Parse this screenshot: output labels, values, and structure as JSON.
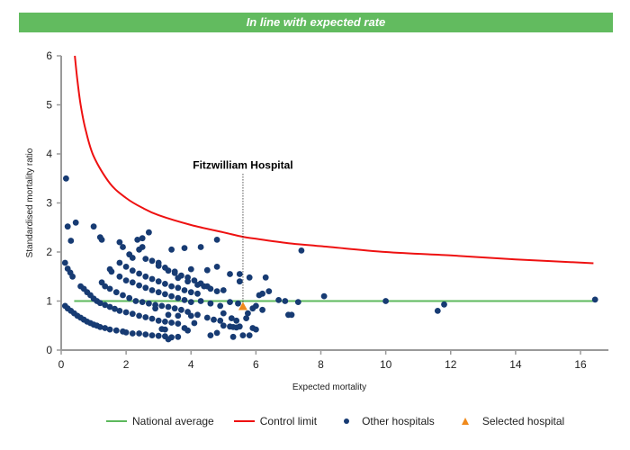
{
  "banner": {
    "text": "In line with expected rate",
    "color": "#62bb5f"
  },
  "chart_data": {
    "type": "scatter",
    "title": "In line with expected rate",
    "xlabel": "Expected mortality",
    "ylabel": "Standardised mortality ratio",
    "xlim": [
      0,
      17
    ],
    "ylim": [
      0,
      6
    ],
    "xticks": [
      0,
      2,
      4,
      6,
      8,
      10,
      12,
      14,
      16
    ],
    "yticks": [
      0,
      1,
      2,
      3,
      4,
      5,
      6
    ],
    "grid": false,
    "legend_position": "bottom",
    "colors": {
      "national_average": "#5cb85c",
      "control_limit": "#ee1111",
      "other_hospitals": "#173b73",
      "selected_hospital": "#f08a1c",
      "axis": "#9a9a9a"
    },
    "legend": [
      {
        "key": "national_average",
        "label": "National average",
        "kind": "line"
      },
      {
        "key": "control_limit",
        "label": "Control limit",
        "kind": "line"
      },
      {
        "key": "other_hospitals",
        "label": "Other hospitals",
        "kind": "dot"
      },
      {
        "key": "selected_hospital",
        "label": "Selected hospital",
        "kind": "triangle"
      }
    ],
    "national_average": {
      "y": 1,
      "x_range": [
        0.4,
        16.4
      ]
    },
    "control_limit": {
      "description": "Upper control limit curve",
      "points": [
        [
          0.42,
          6.0
        ],
        [
          0.5,
          5.5
        ],
        [
          0.6,
          5.0
        ],
        [
          0.75,
          4.5
        ],
        [
          1.0,
          3.95
        ],
        [
          1.5,
          3.4
        ],
        [
          2.0,
          3.1
        ],
        [
          2.5,
          2.9
        ],
        [
          3.0,
          2.75
        ],
        [
          4.0,
          2.55
        ],
        [
          5.0,
          2.4
        ],
        [
          5.6,
          2.31
        ],
        [
          6.0,
          2.27
        ],
        [
          7.0,
          2.18
        ],
        [
          8.0,
          2.12
        ],
        [
          10.0,
          2.0
        ],
        [
          12.0,
          1.93
        ],
        [
          14.0,
          1.85
        ],
        [
          16.4,
          1.77
        ]
      ]
    },
    "annotation": {
      "label": "Fitzwilliam Hospital",
      "x": 5.6,
      "y_label": 3.7
    },
    "selected_hospital": {
      "name": "Fitzwilliam Hospital",
      "x": 5.6,
      "y": 0.89
    },
    "other_hospitals": [
      [
        0.15,
        3.5
      ],
      [
        0.2,
        2.52
      ],
      [
        0.45,
        2.6
      ],
      [
        1.0,
        2.52
      ],
      [
        0.3,
        2.23
      ],
      [
        1.2,
        2.3
      ],
      [
        1.25,
        2.25
      ],
      [
        0.12,
        1.78
      ],
      [
        0.2,
        1.66
      ],
      [
        0.28,
        1.58
      ],
      [
        0.35,
        1.5
      ],
      [
        0.12,
        0.9
      ],
      [
        0.2,
        0.85
      ],
      [
        0.3,
        0.8
      ],
      [
        0.4,
        0.75
      ],
      [
        0.5,
        0.7
      ],
      [
        0.6,
        0.66
      ],
      [
        0.7,
        0.62
      ],
      [
        0.8,
        0.58
      ],
      [
        0.9,
        0.55
      ],
      [
        1.0,
        0.52
      ],
      [
        1.1,
        0.5
      ],
      [
        1.2,
        0.47
      ],
      [
        1.35,
        0.45
      ],
      [
        1.5,
        0.42
      ],
      [
        1.7,
        0.4
      ],
      [
        1.9,
        0.38
      ],
      [
        2.0,
        0.36
      ],
      [
        2.2,
        0.34
      ],
      [
        2.4,
        0.34
      ],
      [
        2.6,
        0.32
      ],
      [
        2.8,
        0.3
      ],
      [
        3.0,
        0.29
      ],
      [
        3.2,
        0.28
      ],
      [
        3.4,
        0.26
      ],
      [
        3.6,
        0.27
      ],
      [
        0.6,
        1.3
      ],
      [
        0.7,
        1.25
      ],
      [
        0.8,
        1.18
      ],
      [
        0.9,
        1.12
      ],
      [
        1.0,
        1.05
      ],
      [
        1.1,
        1.0
      ],
      [
        1.2,
        0.96
      ],
      [
        1.35,
        0.92
      ],
      [
        1.5,
        0.88
      ],
      [
        1.65,
        0.84
      ],
      [
        1.8,
        0.8
      ],
      [
        2.0,
        0.77
      ],
      [
        2.2,
        0.74
      ],
      [
        2.4,
        0.7
      ],
      [
        2.6,
        0.67
      ],
      [
        2.8,
        0.64
      ],
      [
        3.0,
        0.6
      ],
      [
        3.2,
        0.58
      ],
      [
        3.4,
        0.56
      ],
      [
        3.6,
        0.54
      ],
      [
        1.25,
        1.38
      ],
      [
        1.35,
        1.3
      ],
      [
        1.5,
        1.25
      ],
      [
        1.7,
        1.18
      ],
      [
        1.9,
        1.12
      ],
      [
        2.1,
        1.06
      ],
      [
        2.3,
        1.0
      ],
      [
        2.5,
        0.98
      ],
      [
        2.7,
        0.95
      ],
      [
        2.9,
        0.92
      ],
      [
        3.1,
        0.9
      ],
      [
        3.3,
        0.88
      ],
      [
        3.5,
        0.85
      ],
      [
        3.7,
        0.82
      ],
      [
        3.9,
        0.78
      ],
      [
        1.5,
        1.65
      ],
      [
        1.55,
        1.6
      ],
      [
        1.8,
        1.5
      ],
      [
        2.0,
        1.42
      ],
      [
        2.2,
        1.38
      ],
      [
        2.4,
        1.32
      ],
      [
        2.6,
        1.27
      ],
      [
        2.8,
        1.22
      ],
      [
        3.0,
        1.18
      ],
      [
        3.2,
        1.14
      ],
      [
        3.4,
        1.1
      ],
      [
        3.6,
        1.06
      ],
      [
        3.8,
        1.02
      ],
      [
        4.0,
        0.98
      ],
      [
        1.8,
        1.78
      ],
      [
        2.0,
        1.7
      ],
      [
        2.2,
        1.62
      ],
      [
        2.4,
        1.56
      ],
      [
        2.6,
        1.5
      ],
      [
        2.8,
        1.45
      ],
      [
        3.0,
        1.4
      ],
      [
        3.2,
        1.35
      ],
      [
        3.4,
        1.3
      ],
      [
        3.6,
        1.27
      ],
      [
        3.8,
        1.22
      ],
      [
        4.0,
        1.18
      ],
      [
        4.2,
        1.15
      ],
      [
        1.8,
        2.2
      ],
      [
        1.9,
        2.1
      ],
      [
        2.1,
        1.95
      ],
      [
        2.4,
        2.05
      ],
      [
        2.5,
        2.1
      ],
      [
        2.6,
        1.86
      ],
      [
        2.8,
        1.82
      ],
      [
        3.0,
        1.78
      ],
      [
        3.2,
        1.68
      ],
      [
        3.5,
        1.6
      ],
      [
        3.7,
        1.52
      ],
      [
        3.9,
        1.48
      ],
      [
        4.1,
        1.42
      ],
      [
        4.3,
        1.36
      ],
      [
        4.5,
        1.3
      ],
      [
        2.2,
        1.88
      ],
      [
        2.35,
        2.25
      ],
      [
        2.5,
        2.28
      ],
      [
        2.7,
        2.4
      ],
      [
        3.0,
        1.72
      ],
      [
        3.3,
        1.62
      ],
      [
        3.6,
        1.47
      ],
      [
        3.9,
        1.4
      ],
      [
        4.2,
        1.33
      ],
      [
        4.4,
        1.3
      ],
      [
        4.6,
        1.25
      ],
      [
        4.8,
        1.2
      ],
      [
        5.0,
        1.22
      ],
      [
        3.4,
        2.05
      ],
      [
        3.8,
        2.08
      ],
      [
        4.3,
        2.1
      ],
      [
        4.8,
        2.25
      ],
      [
        3.5,
        1.57
      ],
      [
        4.0,
        1.65
      ],
      [
        4.5,
        1.63
      ],
      [
        4.8,
        1.7
      ],
      [
        5.2,
        1.55
      ],
      [
        5.5,
        1.55
      ],
      [
        5.5,
        1.4
      ],
      [
        5.8,
        1.48
      ],
      [
        6.3,
        1.48
      ],
      [
        6.4,
        1.2
      ],
      [
        6.1,
        1.12
      ],
      [
        6.2,
        1.15
      ],
      [
        7.4,
        2.03
      ],
      [
        2.9,
        0.85
      ],
      [
        3.3,
        0.72
      ],
      [
        3.6,
        0.7
      ],
      [
        4.0,
        0.7
      ],
      [
        4.2,
        0.72
      ],
      [
        4.5,
        0.66
      ],
      [
        4.7,
        0.62
      ],
      [
        4.9,
        0.6
      ],
      [
        3.8,
        0.45
      ],
      [
        4.1,
        0.55
      ],
      [
        3.2,
        0.42
      ],
      [
        3.1,
        0.43
      ],
      [
        3.3,
        0.22
      ],
      [
        3.9,
        0.4
      ],
      [
        4.3,
        1.0
      ],
      [
        4.6,
        0.95
      ],
      [
        4.9,
        0.9
      ],
      [
        5.2,
        0.98
      ],
      [
        5.45,
        0.95
      ],
      [
        5.0,
        0.75
      ],
      [
        5.25,
        0.65
      ],
      [
        5.4,
        0.6
      ],
      [
        5.7,
        0.65
      ],
      [
        5.9,
        0.85
      ],
      [
        6.2,
        0.82
      ],
      [
        5.75,
        0.75
      ],
      [
        4.6,
        0.3
      ],
      [
        4.8,
        0.35
      ],
      [
        5.0,
        0.5
      ],
      [
        5.2,
        0.48
      ],
      [
        5.3,
        0.47
      ],
      [
        5.4,
        0.46
      ],
      [
        5.5,
        0.48
      ],
      [
        5.9,
        0.45
      ],
      [
        6.0,
        0.42
      ],
      [
        5.6,
        0.3
      ],
      [
        5.8,
        0.3
      ],
      [
        5.3,
        0.27
      ],
      [
        6.0,
        0.9
      ],
      [
        6.7,
        1.02
      ],
      [
        6.9,
        1.0
      ],
      [
        7.3,
        0.98
      ],
      [
        8.1,
        1.1
      ],
      [
        7.0,
        0.72
      ],
      [
        7.1,
        0.72
      ],
      [
        10.0,
        1.0
      ],
      [
        11.6,
        0.8
      ],
      [
        11.8,
        0.93
      ],
      [
        16.45,
        1.03
      ]
    ]
  }
}
